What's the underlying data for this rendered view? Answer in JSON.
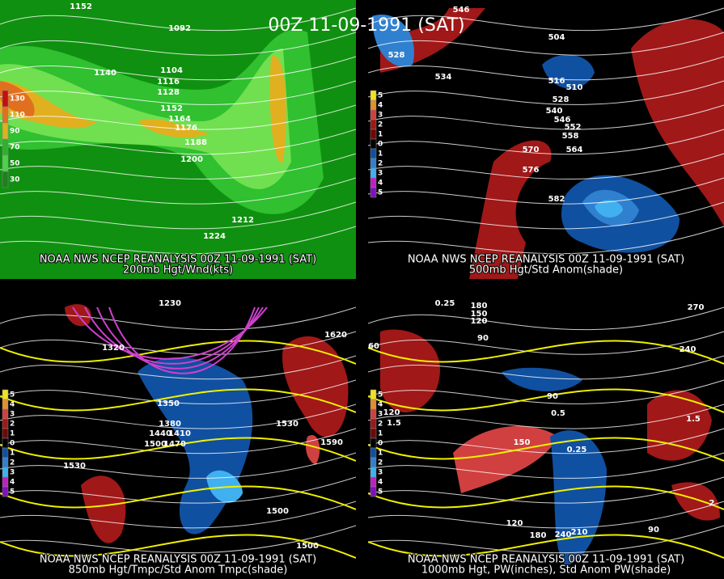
{
  "title": "00Z 11-09-1991 (SAT)",
  "panels": [
    {
      "header": "NOAA NWS NCEP REANALYSIS 00Z 11-09-1991 (SAT)",
      "caption": "200mb Hgt/Wnd(kts)",
      "legend": {
        "labels": [
          "130",
          "110",
          "90",
          "70",
          "50",
          "30"
        ],
        "colors": [
          "#c01010",
          "#e07020",
          "#e0b020",
          "#30b030",
          "#50d050",
          "#208020"
        ]
      },
      "labels": [
        "1152",
        "1092",
        "1140",
        "1104",
        "1116",
        "1128",
        "1152",
        "1164",
        "1176",
        "1188",
        "1200",
        "1212",
        "1224"
      ]
    },
    {
      "header": "NOAA NWS NCEP REANALYSIS 00Z 11-09-1991 (SAT)",
      "caption": "500mb Hgt/Std Anom(shade)",
      "legend": {
        "labels": [
          "5",
          "4",
          "3",
          "2",
          "1",
          "0",
          "1",
          "2",
          "3",
          "4",
          "5"
        ],
        "colors": [
          "#f0e020",
          "#e09030",
          "#d04040",
          "#a01818",
          "#700808",
          "#000000",
          "#1050a0",
          "#3080d0",
          "#40b0f0",
          "#c020c0",
          "#8010c0"
        ]
      },
      "labels": [
        "546",
        "504",
        "528",
        "534",
        "516",
        "510",
        "528",
        "540",
        "546",
        "552",
        "558",
        "570",
        "564",
        "576",
        "582"
      ]
    },
    {
      "header": "NOAA NWS NCEP REANALYSIS 00Z 11-09-1991 (SAT)",
      "caption": "850mb Hgt/Tmpc/Std Anom Tmpc(shade)",
      "legend": {
        "labels": [
          "5",
          "4",
          "3",
          "2",
          "1",
          "0",
          "1",
          "2",
          "3",
          "4",
          "5"
        ],
        "colors": [
          "#f0e020",
          "#e09030",
          "#d04040",
          "#a01818",
          "#700808",
          "#000000",
          "#1050a0",
          "#3080d0",
          "#40b0f0",
          "#c020c0",
          "#8010c0"
        ]
      },
      "labels": [
        "1230",
        "1320",
        "1350",
        "1380",
        "1440",
        "1410",
        "1500",
        "1470",
        "1530",
        "1530",
        "1590",
        "1620",
        "1500",
        "1500"
      ]
    },
    {
      "header": "NOAA NWS NCEP REANALYSIS 00Z 11-09-1991 (SAT)",
      "caption": "1000mb Hgt, PW(inches), Std Anom PW(shade)",
      "legend": {
        "labels": [
          "5",
          "4",
          "3",
          "2",
          "1",
          "0",
          "1",
          "2",
          "3",
          "4",
          "5"
        ],
        "colors": [
          "#f0e020",
          "#e09030",
          "#d04040",
          "#a01818",
          "#700808",
          "#000000",
          "#1050a0",
          "#3080d0",
          "#40b0f0",
          "#c020c0",
          "#8010c0"
        ]
      },
      "labels": [
        "0.25",
        "180",
        "150",
        "120",
        "90",
        "60",
        "120",
        "90",
        "150",
        "240",
        "210",
        "180",
        "120",
        "90",
        "240",
        "270",
        "1.5",
        "0.5",
        "0.25",
        "1.5",
        "2"
      ]
    }
  ]
}
